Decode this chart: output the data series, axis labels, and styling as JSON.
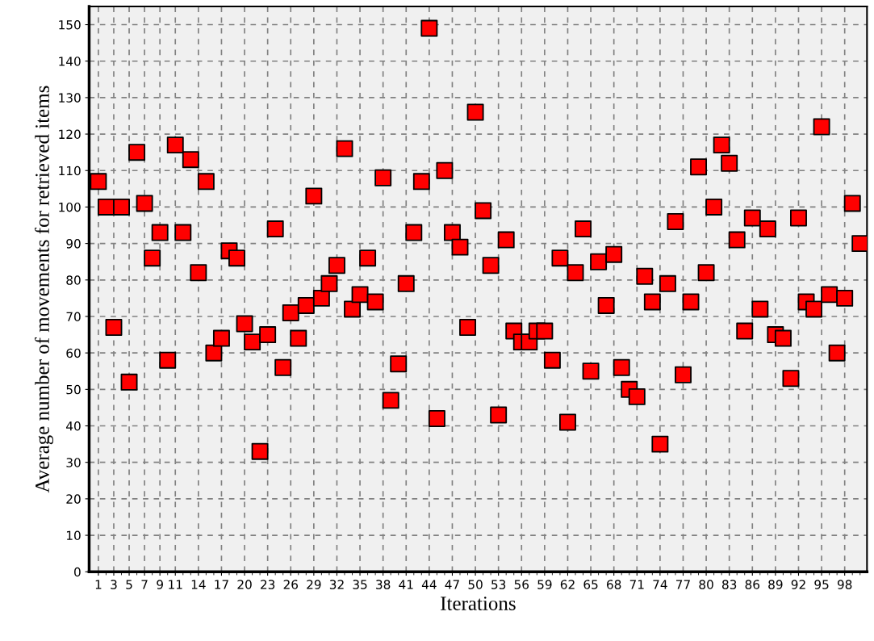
{
  "chart_data": {
    "type": "scatter",
    "xlabel": "Iterations",
    "ylabel": "Average number of movements for retrieved items",
    "categories": [
      "1",
      null,
      "3",
      null,
      "5",
      null,
      "7",
      null,
      "9",
      null,
      "11",
      null,
      null,
      "14",
      null,
      null,
      "17",
      null,
      null,
      "20",
      null,
      null,
      "23",
      null,
      null,
      "26",
      null,
      null,
      "29",
      null,
      null,
      "32",
      null,
      null,
      "35",
      null,
      null,
      "38",
      null,
      null,
      "41",
      null,
      null,
      "44",
      null,
      null,
      "47",
      null,
      null,
      "50",
      null,
      null,
      "53",
      null,
      null,
      "56",
      null,
      null,
      "59",
      null,
      null,
      "62",
      null,
      null,
      "65",
      null,
      null,
      "68",
      null,
      null,
      "71",
      null,
      null,
      "74",
      null,
      null,
      "77",
      null,
      null,
      "80",
      null,
      null,
      "83",
      null,
      null,
      "86",
      null,
      null,
      "89",
      null,
      null,
      "92",
      null,
      null,
      "95",
      null,
      null,
      "98",
      null,
      null
    ],
    "series": [
      {
        "color": "#ff0000",
        "values": [
          107,
          100,
          67,
          100,
          52,
          115,
          101,
          86,
          93,
          58,
          117,
          93,
          113,
          82,
          107,
          60,
          64,
          88,
          86,
          68,
          63,
          33,
          65,
          94,
          56,
          71,
          64,
          73,
          103,
          75,
          79,
          84,
          116,
          72,
          76,
          86,
          74,
          108,
          47,
          57,
          79,
          93,
          107,
          149,
          42,
          110,
          93,
          89,
          67,
          126,
          99,
          84,
          43,
          91,
          66,
          63,
          63,
          66,
          66,
          58,
          86,
          41,
          82,
          94,
          55,
          85,
          73,
          87,
          56,
          50,
          48,
          81,
          74,
          35,
          79,
          96,
          54,
          74,
          111,
          82,
          100,
          117,
          112,
          91,
          66,
          97,
          72,
          94,
          65,
          64,
          53,
          97,
          74,
          72,
          122,
          76,
          60,
          75,
          101,
          90
        ]
      }
    ],
    "ylim": [
      0,
      155
    ],
    "yticks": [
      0,
      10,
      20,
      30,
      40,
      50,
      60,
      70,
      80,
      90,
      100,
      110,
      120,
      130,
      140,
      150
    ],
    "grid": true,
    "marker": "square",
    "legend": false
  }
}
